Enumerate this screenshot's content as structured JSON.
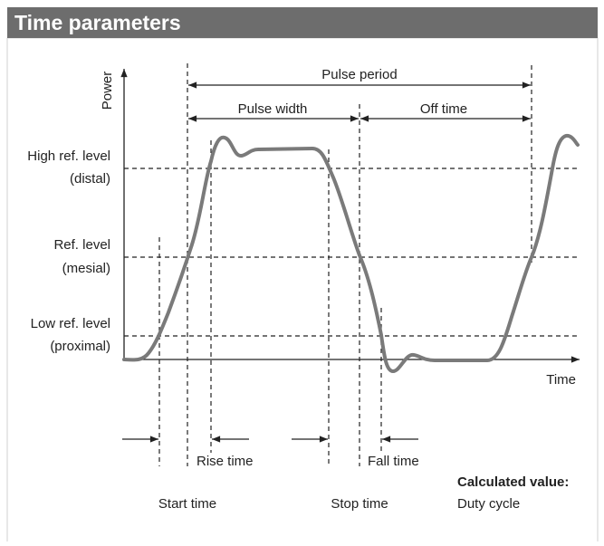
{
  "header": {
    "title": "Time parameters"
  },
  "axes": {
    "y_label": "Power",
    "x_label": "Time"
  },
  "levels": [
    {
      "label": "High ref. level",
      "sub": "(distal)"
    },
    {
      "label": "Ref. level",
      "sub": "(mesial)"
    },
    {
      "label": "Low ref. level",
      "sub": "(proximal)"
    }
  ],
  "intervals": {
    "pulse_period": "Pulse period",
    "pulse_width": "Pulse width",
    "off_time": "Off time",
    "rise_time": "Rise time",
    "fall_time": "Fall time"
  },
  "events": {
    "start_time": "Start time",
    "stop_time": "Stop time"
  },
  "calculated": {
    "heading": "Calculated value:",
    "value": "Duty cycle"
  }
}
